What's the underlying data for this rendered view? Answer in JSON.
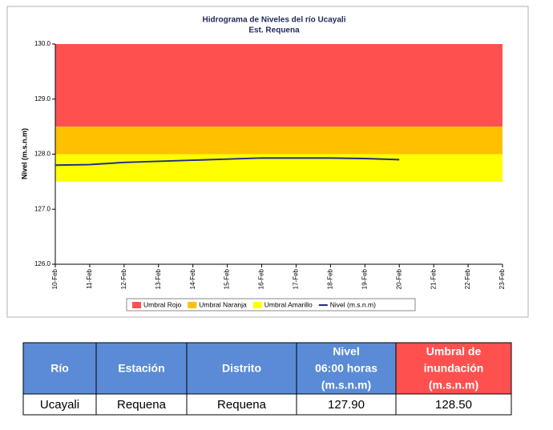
{
  "chart_data": {
    "type": "line",
    "title": "Hidrograma de Niveles del río Ucayali",
    "subtitle": "Est. Requena",
    "y_label": "Nivel (m.s.n.m)",
    "categories": [
      "10-Feb",
      "11-Feb",
      "12-Feb",
      "13-Feb",
      "14-Feb",
      "15-Feb",
      "16-Feb",
      "17-Feb",
      "18-Feb",
      "19-Feb",
      "20-Feb",
      "21-Feb",
      "22-Feb",
      "23-Feb"
    ],
    "bands": [
      {
        "name": "Umbral Rojo",
        "color": "#ff5050",
        "from": 128.5,
        "to": 130
      },
      {
        "name": "Umbral Naranja",
        "color": "#ffc000",
        "from": 128,
        "to": 128.5
      },
      {
        "name": "Umbral Amarillo",
        "color": "#ffff00",
        "from": 127.5,
        "to": 128
      }
    ],
    "series": [
      {
        "name": "Nivel (m.s.n.m)",
        "color": "#1f2a8a",
        "values": [
          127.8,
          127.81,
          127.85,
          127.87,
          127.89,
          127.91,
          127.93,
          127.93,
          127.93,
          127.92,
          127.9,
          null,
          null,
          null
        ]
      }
    ],
    "ylim": [
      126,
      130
    ],
    "yticks": [
      {
        "value": 126,
        "label": "126.0"
      },
      {
        "value": 127,
        "label": "127.0"
      },
      {
        "value": 128,
        "label": "128.0"
      },
      {
        "value": 129,
        "label": "129.0"
      },
      {
        "value": 130,
        "label": "130.0"
      }
    ]
  },
  "table": {
    "headers": [
      [
        "Río"
      ],
      [
        "Estación"
      ],
      [
        "Distrito"
      ],
      [
        "Nivel",
        "06:00 horas",
        "(m.s.n.m)"
      ],
      [
        "Umbral de",
        "inundación",
        "(m.s.n.m)"
      ]
    ],
    "rows": [
      [
        "Ucayali",
        "Requena",
        "Requena",
        "127.90",
        "128.50"
      ]
    ]
  }
}
